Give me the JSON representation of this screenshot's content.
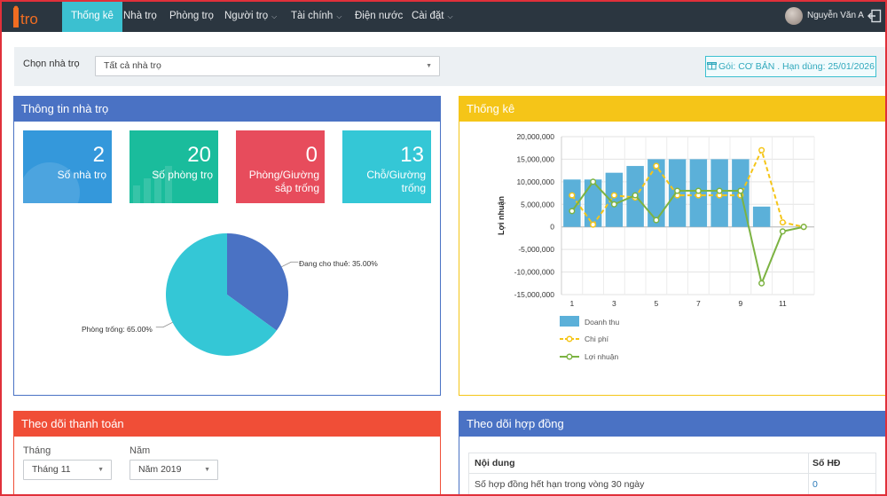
{
  "nav": {
    "logo_text": "itro",
    "items": [
      {
        "label": "Thống kê",
        "caret": false
      },
      {
        "label": "Nhà trọ",
        "caret": false
      },
      {
        "label": "Phòng trọ",
        "caret": false
      },
      {
        "label": "Người trọ",
        "caret": true
      },
      {
        "label": "Tài chính",
        "caret": true
      },
      {
        "label": "Điện nước",
        "caret": false
      },
      {
        "label": "Cài đặt",
        "caret": true
      }
    ],
    "user_name": "Nguyễn Văn A",
    "logout_icon": "logout-icon"
  },
  "filter": {
    "label": "Chọn nhà trọ",
    "selected": "Tất cả nhà trọ",
    "package": "Gói: CƠ BẢN . Hạn dùng: 25/01/2026",
    "package_icon": "gift-icon"
  },
  "info_panel": {
    "title": "Thông tin nhà trọ",
    "tiles": [
      {
        "value": "2",
        "label": "Số nhà trọ",
        "color": "#3498db"
      },
      {
        "value": "20",
        "label": "Số phòng trọ",
        "color": "#1abc9c"
      },
      {
        "value": "0",
        "label": "Phòng/Giường sắp trống",
        "color": "#e74c5c"
      },
      {
        "value": "13",
        "label": "Chỗ/Giường trống",
        "color": "#34c7d6"
      }
    ]
  },
  "chart_data": [
    {
      "type": "pie",
      "slices": [
        {
          "label": "Đang cho thuê: 35.00%",
          "value": 35.0,
          "color": "#4a72c4"
        },
        {
          "label": "Phòng trống: 65.00%",
          "value": 65.0,
          "color": "#34c7d6"
        }
      ]
    },
    {
      "type": "bar",
      "title": "",
      "xlabel": "",
      "ylabel": "Lợi nhuận",
      "x": [
        1,
        2,
        3,
        4,
        5,
        6,
        7,
        8,
        9,
        10,
        11,
        12
      ],
      "xticks": [
        "1",
        "3",
        "5",
        "7",
        "9",
        "11"
      ],
      "yticks": [
        "20,000,000",
        "15,000,000",
        "10,000,000",
        "5,000,000",
        "0",
        "-5,000,000",
        "-10,000,000",
        "-15,000,000"
      ],
      "ylim": [
        -15000000,
        20000000
      ],
      "legend_position": "bottom-left",
      "series": [
        {
          "name": "Doanh thu",
          "kind": "bar",
          "color": "#5bb0d9",
          "values": [
            10500000,
            10500000,
            12000000,
            13500000,
            15000000,
            15000000,
            15000000,
            15000000,
            15000000,
            4500000,
            0,
            0
          ]
        },
        {
          "name": "Chi phí",
          "kind": "line",
          "dashed": true,
          "color": "#f5c518",
          "values": [
            7000000,
            500000,
            7000000,
            6500000,
            13500000,
            7000000,
            7000000,
            7000000,
            7000000,
            17000000,
            1000000,
            0
          ]
        },
        {
          "name": "Lợi nhuận",
          "kind": "line",
          "dashed": false,
          "color": "#7cb342",
          "values": [
            3500000,
            10000000,
            5000000,
            7000000,
            1500000,
            8000000,
            8000000,
            8000000,
            8000000,
            -12500000,
            -1000000,
            0
          ]
        }
      ]
    }
  ],
  "stats_panel": {
    "title": "Thống kê"
  },
  "payment_panel": {
    "title": "Theo dõi thanh toán",
    "month_label": "Tháng",
    "month_value": "Tháng 11",
    "year_label": "Năm",
    "year_value": "Năm 2019"
  },
  "contract_panel": {
    "title": "Theo dõi hợp đồng",
    "columns": [
      "Nội dung",
      "Số HĐ"
    ],
    "rows": [
      {
        "content": "Số hợp đồng hết hạn trong vòng 30 ngày",
        "count": "0"
      }
    ]
  },
  "colors": {
    "navbar": "#2b3640",
    "accent": "#3bc0d0",
    "info_header": "#4a72c4",
    "stats_header": "#f5c518",
    "payment_header": "#f04e37",
    "contract_header": "#4a72c4"
  }
}
